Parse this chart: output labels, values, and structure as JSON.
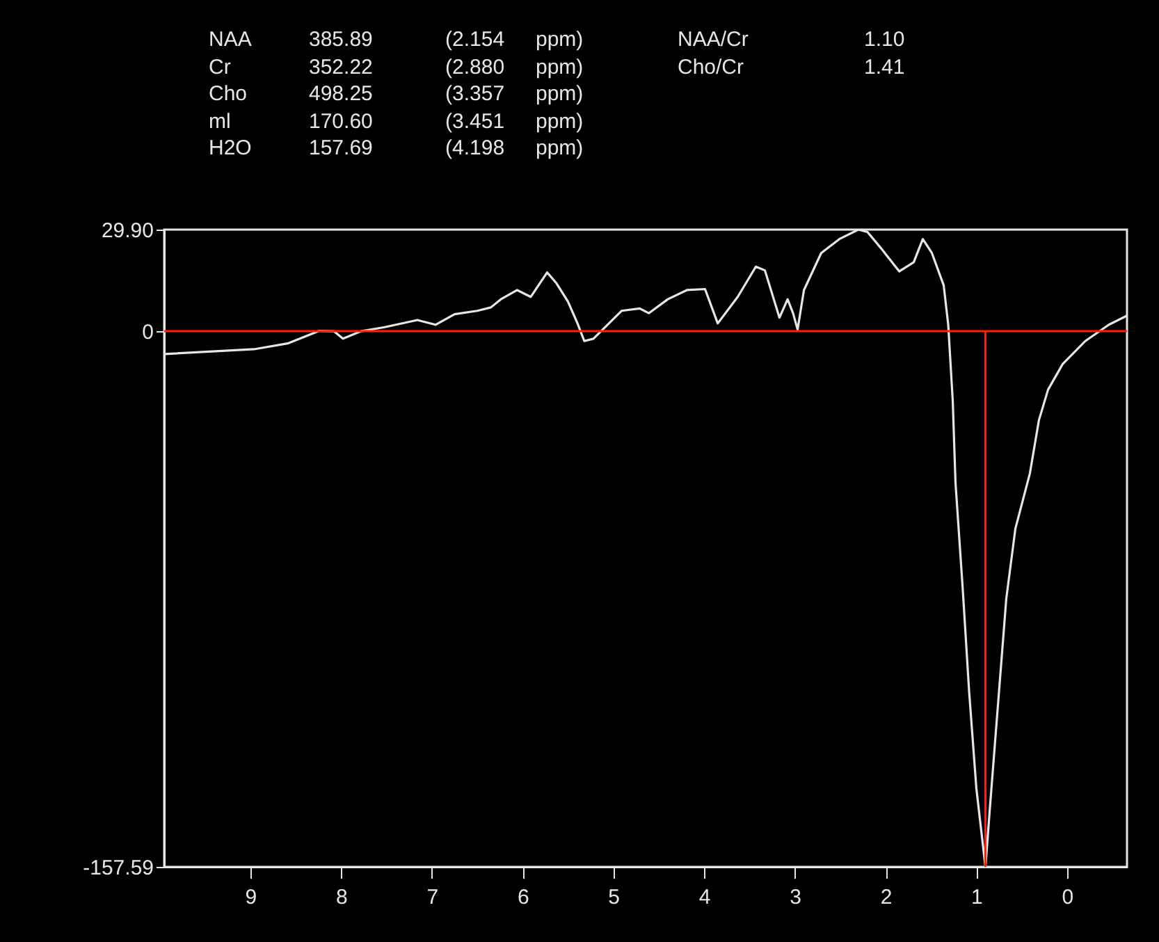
{
  "chart_data": {
    "type": "line",
    "annotations": [
      "NAA 385.89 (2.154 ppm)",
      "Cr 352.22 (2.880 ppm)",
      "Cho 498.25 (3.357 ppm)",
      "ml 170.60 (3.451 ppm)",
      "H2O 157.69 (4.198 ppm)",
      "NAA/Cr 1.10",
      "Cho/Cr 1.41"
    ],
    "series": [
      {
        "color": "#e6e6e6",
        "x": [
          9.94,
          8.96,
          8.59,
          8.24,
          8.08,
          7.98,
          7.78,
          7.52,
          7.16,
          6.96,
          6.75,
          6.5,
          6.35,
          6.24,
          6.06,
          5.91,
          5.73,
          5.63,
          5.5,
          5.4,
          5.32,
          5.22,
          5.09,
          4.91,
          4.71,
          4.61,
          4.4,
          4.19,
          3.99,
          3.85,
          3.63,
          3.43,
          3.33,
          3.17,
          3.08,
          3.02,
          2.97,
          2.9,
          2.71,
          2.51,
          2.3,
          2.2,
          2.05,
          1.85,
          1.69,
          1.59,
          1.49,
          1.36,
          1.31,
          1.26,
          1.23,
          1.15,
          1.08,
          1.0,
          0.9,
          0.85,
          0.77,
          0.67,
          0.57,
          0.41,
          0.31,
          0.21,
          0.05,
          -0.2,
          -0.46,
          -0.66
        ],
        "values": [
          -6.7,
          -5.3,
          -3.6,
          0.1,
          0,
          -2.2,
          0,
          1.2,
          3.3,
          1.9,
          5.0,
          6.0,
          7.0,
          9.4,
          12.1,
          10.1,
          17.3,
          14.2,
          8.7,
          2.6,
          -2.9,
          -2.2,
          1.2,
          6.0,
          6.7,
          5.3,
          9.4,
          12.1,
          12.4,
          2.3,
          10.1,
          19.0,
          17.9,
          4.0,
          9.4,
          5.3,
          0.5,
          12.1,
          23.0,
          27.1,
          29.9,
          29.2,
          24.4,
          17.6,
          20.3,
          27.1,
          23.0,
          13.5,
          1.9,
          -20.6,
          -44.5,
          -75.9,
          -105.9,
          -134.5,
          -157.59,
          -140,
          -112.7,
          -78.6,
          -58.1,
          -41.8,
          -26.1,
          -17.2,
          -9.7,
          -2.9,
          1.9,
          4.6
        ]
      }
    ],
    "xlim": [
      9.95,
      -0.66
    ],
    "xticks": [
      9,
      8,
      7,
      6,
      5,
      4,
      3,
      2,
      1,
      0
    ],
    "ylim": [
      -157.59,
      29.9
    ],
    "yticks": [
      -157.59,
      0,
      {
        "value": 29.9,
        "label": "29.90"
      }
    ],
    "ref_lines": [
      {
        "axis": "y",
        "value": 0,
        "color": "#ff2000"
      },
      {
        "axis": "x",
        "value": 0.9,
        "color": "#ff2000"
      }
    ],
    "grid": false,
    "marker": "none",
    "line_style": "solid"
  }
}
